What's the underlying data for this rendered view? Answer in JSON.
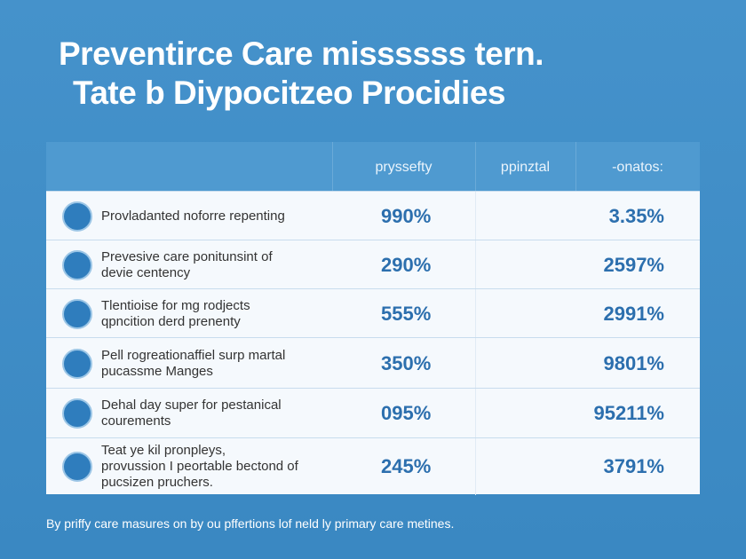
{
  "header": {
    "title": [
      "Preventirce Care missssss tern.",
      "Tate b Diypocitzeo Procidies"
    ]
  },
  "table": {
    "columns": [
      "pryssefty",
      "ppinztal",
      "-onatos:"
    ],
    "rows": [
      {
        "label": [
          "Provladanted noforre repenting"
        ],
        "values": [
          "990%",
          "3.35%"
        ]
      },
      {
        "label": [
          "Prevesive care ponitunsint of",
          "devie centency"
        ],
        "values": [
          "290%",
          "2597%"
        ]
      },
      {
        "label": [
          "Tlentioise for mg rodjects",
          "qpncition derd prenenty"
        ],
        "values": [
          "555%",
          "2991%"
        ]
      },
      {
        "label": [
          "Pell rogreationaffiel surp martal",
          "pucassme Manges"
        ],
        "values": [
          "350%",
          "9801%"
        ]
      },
      {
        "label": [
          "Dehal day super for pestanical",
          "courements"
        ],
        "values": [
          "095%",
          "95211%"
        ]
      },
      {
        "label": [
          "Teat ye kil pronpleys,",
          "provussion I peortable bectond of",
          "pucsizen pruchers."
        ],
        "values": [
          "245%",
          "3791%"
        ]
      }
    ]
  },
  "footer": "By priffy care masures on by ou pffertions lof neld ly primary care metines."
}
